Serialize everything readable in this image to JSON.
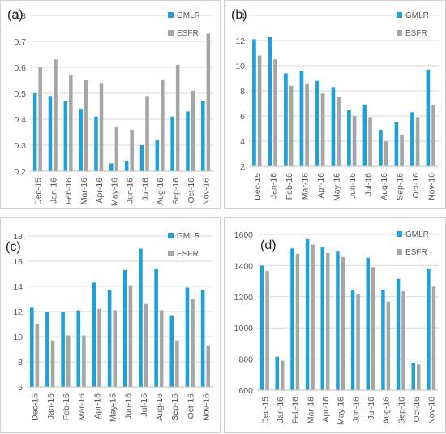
{
  "chart_data": [
    {
      "panel": "(a)",
      "type": "bar",
      "categories": [
        "Dec-15",
        "Jan-16",
        "Feb-16",
        "Mar-16",
        "Apr-16",
        "May-16",
        "Jun-16",
        "Jul-16",
        "Aug-16",
        "Sep-16",
        "Oct-16",
        "Nov-16"
      ],
      "series": [
        {
          "name": "GMLR",
          "color": "#1fa0d8",
          "values": [
            0.5,
            0.49,
            0.47,
            0.44,
            0.41,
            0.23,
            0.24,
            0.3,
            0.32,
            0.41,
            0.43,
            0.47
          ]
        },
        {
          "name": "ESFR",
          "color": "#a6a6a6",
          "values": [
            0.6,
            0.63,
            0.57,
            0.55,
            0.54,
            0.37,
            0.36,
            0.49,
            0.55,
            0.61,
            0.51,
            0.73
          ]
        }
      ],
      "ylim": [
        0.2,
        0.8
      ],
      "yticks": [
        "0.2",
        "0.3",
        "0.4",
        "0.5",
        "0.6",
        "0.7",
        "0.8"
      ],
      "legend": "top-right"
    },
    {
      "panel": "(b)",
      "type": "bar",
      "categories": [
        "Dec-15",
        "Jan-16",
        "Feb-16",
        "Mar-16",
        "Apr-16",
        "May-16",
        "Jun-16",
        "Jul-16",
        "Aug-16",
        "Sep-16",
        "Oct-16",
        "Nov-16"
      ],
      "series": [
        {
          "name": "GMLR",
          "color": "#1fa0d8",
          "values": [
            12.1,
            12.3,
            9.4,
            9.6,
            8.8,
            8.3,
            6.5,
            6.9,
            4.9,
            5.5,
            6.3,
            9.7
          ]
        },
        {
          "name": "ESFR",
          "color": "#a6a6a6",
          "values": [
            10.8,
            10.5,
            8.4,
            8.6,
            7.8,
            7.5,
            6.0,
            5.9,
            4.0,
            4.5,
            5.9,
            6.9
          ]
        }
      ],
      "ylim": [
        2,
        14
      ],
      "yticks": [
        "2",
        "4",
        "6",
        "8",
        "10",
        "12",
        "14"
      ],
      "legend": "top-right"
    },
    {
      "panel": "(c)",
      "type": "bar",
      "categories": [
        "Dec-15",
        "Jan-16",
        "Feb-16",
        "Mar-16",
        "Apr-16",
        "May-16",
        "Jun-16",
        "Jul-16",
        "Aug-16",
        "Sep-16",
        "Oct-16",
        "Nov-16"
      ],
      "series": [
        {
          "name": "GMLR",
          "color": "#1fa0d8",
          "values": [
            12.3,
            12.0,
            12.0,
            12.1,
            14.3,
            13.7,
            15.3,
            17.0,
            15.4,
            11.7,
            13.9,
            13.7
          ]
        },
        {
          "name": "ESFR",
          "color": "#a6a6a6",
          "values": [
            11.0,
            9.7,
            10.1,
            10.1,
            12.2,
            12.1,
            14.1,
            12.6,
            12.1,
            9.7,
            13.0,
            9.3
          ]
        }
      ],
      "ylim": [
        6,
        18
      ],
      "yticks": [
        "6",
        "8",
        "10",
        "12",
        "14",
        "16",
        "18"
      ],
      "legend": "top-right"
    },
    {
      "panel": "(d)",
      "type": "bar",
      "categories": [
        "Dec-15",
        "Jan-16",
        "Feb-16",
        "Mar-16",
        "Apr-16",
        "May-16",
        "Jun-16",
        "Jul-16",
        "Aug-16",
        "Sep-16",
        "Oct-16",
        "Nov-16"
      ],
      "series": [
        {
          "name": "GMLR",
          "color": "#1fa0d8",
          "values": [
            1400,
            815,
            1510,
            1570,
            1520,
            1490,
            1240,
            1450,
            1245,
            1315,
            775,
            1380
          ]
        },
        {
          "name": "ESFR",
          "color": "#a6a6a6",
          "values": [
            1365,
            790,
            1475,
            1535,
            1480,
            1455,
            1215,
            1390,
            1170,
            1235,
            765,
            1265
          ]
        }
      ],
      "ylim": [
        600,
        1600
      ],
      "yticks": [
        "600",
        "800",
        "1000",
        "1200",
        "1400",
        "1600"
      ],
      "legend": "top-right"
    }
  ]
}
